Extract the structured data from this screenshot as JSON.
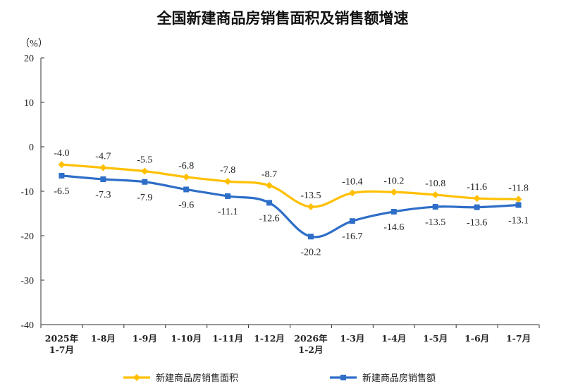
{
  "chart_data": {
    "type": "line",
    "title": "全国新建商品房销售面积及销售额增速",
    "ylabel": "（%）",
    "xlabel": "",
    "ylim": [
      -40,
      20
    ],
    "yticks": [
      20,
      10,
      0,
      -10,
      -20,
      -30,
      -40
    ],
    "categories": [
      [
        "2025年",
        "1-7月"
      ],
      [
        "1-8月"
      ],
      [
        "1-9月"
      ],
      [
        "1-10月"
      ],
      [
        "1-11月"
      ],
      [
        "1-12月"
      ],
      [
        "2026年",
        "1-2月"
      ],
      [
        "1-3月"
      ],
      [
        "1-4月"
      ],
      [
        "1-5月"
      ],
      [
        "1-6月"
      ],
      [
        "1-7月"
      ]
    ],
    "grid": false,
    "legend_position": "bottom",
    "series": [
      {
        "name": "新建商品房销售面积",
        "color": "#FFC000",
        "marker": "diamond",
        "values": [
          -4.0,
          -4.7,
          -5.5,
          -6.8,
          -7.8,
          -8.7,
          -13.5,
          -10.4,
          -10.2,
          -10.8,
          -11.6,
          -11.8
        ],
        "labels": [
          "-4.0",
          "-4.7",
          "-5.5",
          "-6.8",
          "-7.8",
          "-8.7",
          "-13.5",
          "-10.4",
          "-10.2",
          "-10.8",
          "-11.6",
          "-11.8"
        ]
      },
      {
        "name": "新建商品房销售额",
        "color": "#2E6EC8",
        "marker": "square",
        "values": [
          -6.5,
          -7.3,
          -7.9,
          -9.6,
          -11.1,
          -12.6,
          -20.2,
          -16.7,
          -14.6,
          -13.5,
          -13.6,
          -13.1
        ],
        "labels": [
          "-6.5",
          "-7.3",
          "-7.9",
          "-9.6",
          "-11.1",
          "-12.6",
          "-20.2",
          "-16.7",
          "-14.6",
          "-13.5",
          "-13.6",
          "-13.1"
        ]
      }
    ]
  }
}
